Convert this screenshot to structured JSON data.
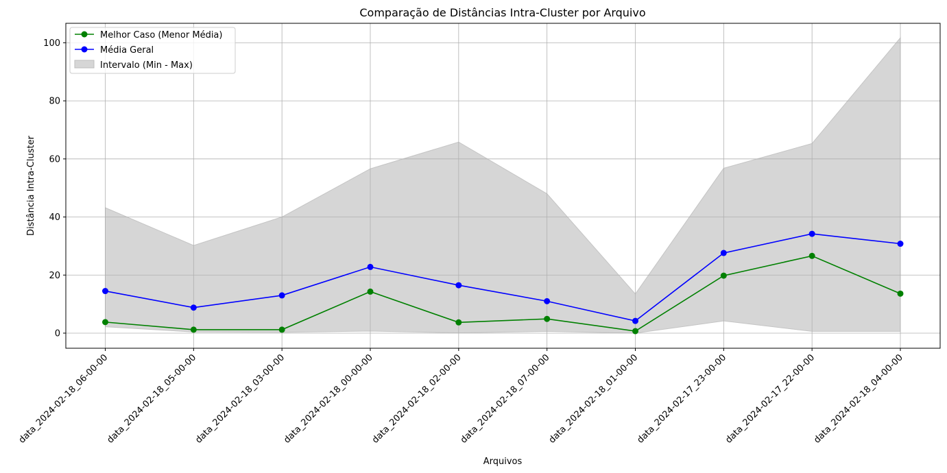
{
  "chart_data": {
    "type": "line",
    "title": "Comparação de Distâncias Intra-Cluster por Arquivo",
    "xlabel": "Arquivos",
    "ylabel": "Distância Intra-Cluster",
    "categories": [
      "data_2024-02-18_06-00-00",
      "data_2024-02-18_05-00-00",
      "data_2024-02-18_03-00-00",
      "data_2024-02-18_00-00-00",
      "data_2024-02-18_02-00-00",
      "data_2024-02-18_07-00-00",
      "data_2024-02-18_01-00-00",
      "data_2024-02-17_23-00-00",
      "data_2024-02-17_22-00-00",
      "data_2024-02-18_04-00-00"
    ],
    "ylim": [
      -5.2,
      106.7
    ],
    "yticks": [
      0,
      20,
      40,
      60,
      80,
      100
    ],
    "grid": true,
    "legend_position": "top-left",
    "series": [
      {
        "name": "Melhor Caso (Menor Média)",
        "color": "#008000",
        "values": [
          3.8,
          1.2,
          1.2,
          14.3,
          3.7,
          4.9,
          0.7,
          19.8,
          26.6,
          13.6
        ]
      },
      {
        "name": "Média Geral",
        "color": "#0000ff",
        "values": [
          14.5,
          8.8,
          13.0,
          22.8,
          16.5,
          11.0,
          4.2,
          27.6,
          34.2,
          30.8
        ]
      }
    ],
    "range": {
      "name": "Intervalo (Min - Max)",
      "color": "#d6d6d6",
      "min": [
        2.2,
        0.4,
        0.3,
        0.7,
        0.1,
        0.6,
        0.0,
        4.2,
        0.6,
        0.6
      ],
      "max": [
        43.2,
        30.2,
        40.0,
        56.6,
        65.8,
        48.0,
        13.5,
        56.8,
        65.3,
        101.7
      ]
    }
  }
}
